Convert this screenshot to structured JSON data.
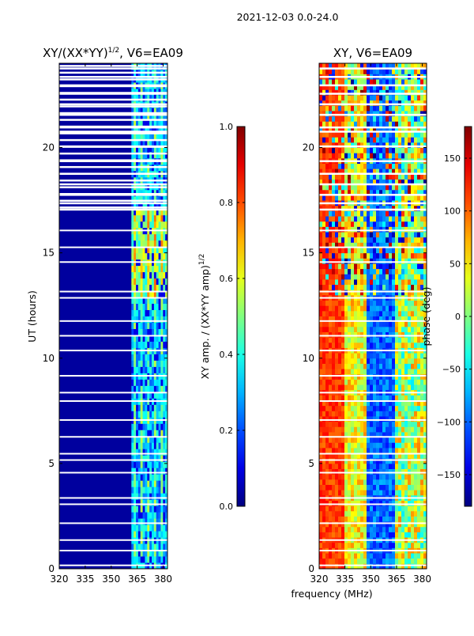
{
  "suptitle": "2021-12-03 0.0-24.0",
  "shared_xlabel": "frequency (MHz)",
  "chart_data": [
    {
      "type": "heatmap",
      "title_text": "XY/(XX*YY)",
      "title_sup": "1/2",
      "title_suffix": ", V6=EA09",
      "ylabel": "UT (hours)",
      "xlim": [
        320,
        382.5
      ],
      "ylim": [
        0,
        24
      ],
      "xticks": [
        320,
        335,
        350,
        365,
        380
      ],
      "yticks": [
        0,
        5,
        10,
        15,
        20
      ],
      "colorbar": {
        "label_text": "XY amp. / (XX*YY amp)",
        "label_sup": "1/2",
        "range": [
          0.0,
          1.0
        ],
        "ticks": [
          "0.0",
          "0.2",
          "0.4",
          "0.6",
          "0.8",
          "1.0"
        ],
        "tick_values": [
          0.0,
          0.2,
          0.4,
          0.6,
          0.8,
          1.0
        ],
        "colormap": "jet"
      },
      "description": "Normalized cross-hand amplitude; mostly near 0 (dark blue) below 362 MHz, with bright vertical channels (0.3-0.7) between about 362 and 382 MHz; horizontal white gaps are flagged times."
    },
    {
      "type": "heatmap",
      "title_text": "XY, V6=EA09",
      "ylabel": "",
      "xlim": [
        320,
        382.5
      ],
      "ylim": [
        0,
        24
      ],
      "xticks": [
        320,
        335,
        350,
        365,
        380
      ],
      "yticks": [
        0,
        5,
        10,
        15,
        20
      ],
      "colorbar": {
        "label_text": "phase (deg)",
        "range": [
          -180,
          180
        ],
        "ticks": [
          "150",
          "100",
          "50",
          "0",
          "−50",
          "−100",
          "−150"
        ],
        "tick_values": [
          150,
          100,
          50,
          0,
          -50,
          -100,
          -150
        ],
        "colormap": "jet"
      },
      "description": "Cross-hand phase versus frequency and time; red/orange at low frequencies, blue around 355-365 MHz, noisy multi-colored patches at later hours; horizontal white gaps are flagged times."
    }
  ]
}
